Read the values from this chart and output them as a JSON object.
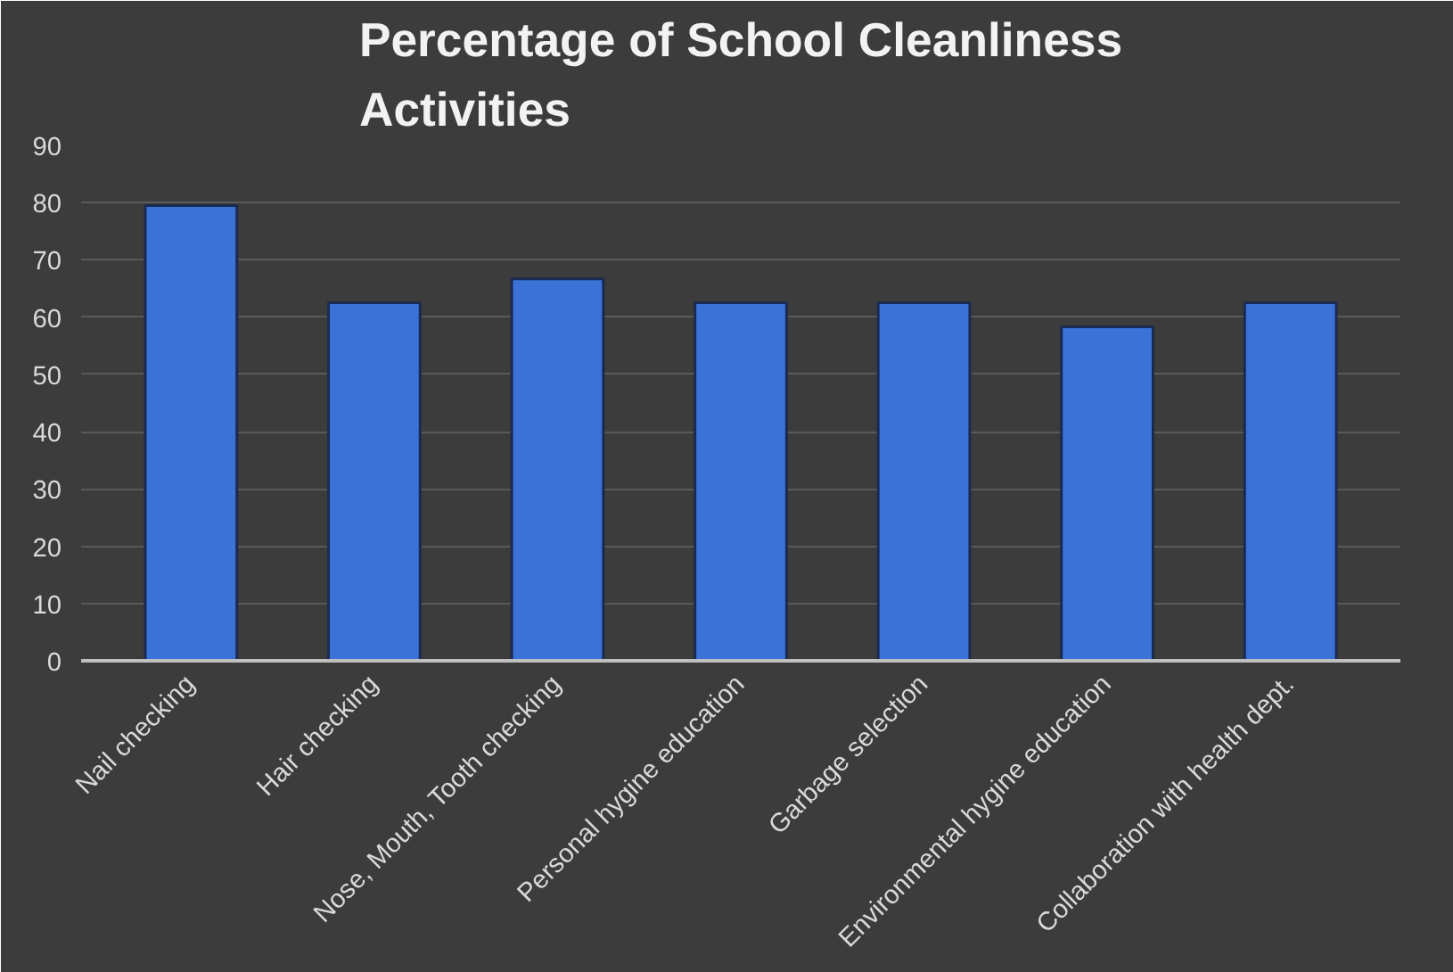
{
  "chart_data": {
    "type": "bar",
    "title": "Percentage of School Cleanliness Activities",
    "categories": [
      "Nail checking",
      "Hair checking",
      "Nose, Mouth, Tooth checking",
      "Personal hygine education",
      "Garbage selection",
      "Environmental hygine education",
      "Collaboration with health dept."
    ],
    "values": [
      79.5,
      62.5,
      66.7,
      62.5,
      62.5,
      58.3,
      62.5
    ],
    "color": "#3a72d8",
    "ylim": [
      0,
      90
    ],
    "yticks": [
      0,
      10,
      20,
      30,
      40,
      50,
      60,
      70,
      80,
      90
    ],
    "grid": "y"
  }
}
